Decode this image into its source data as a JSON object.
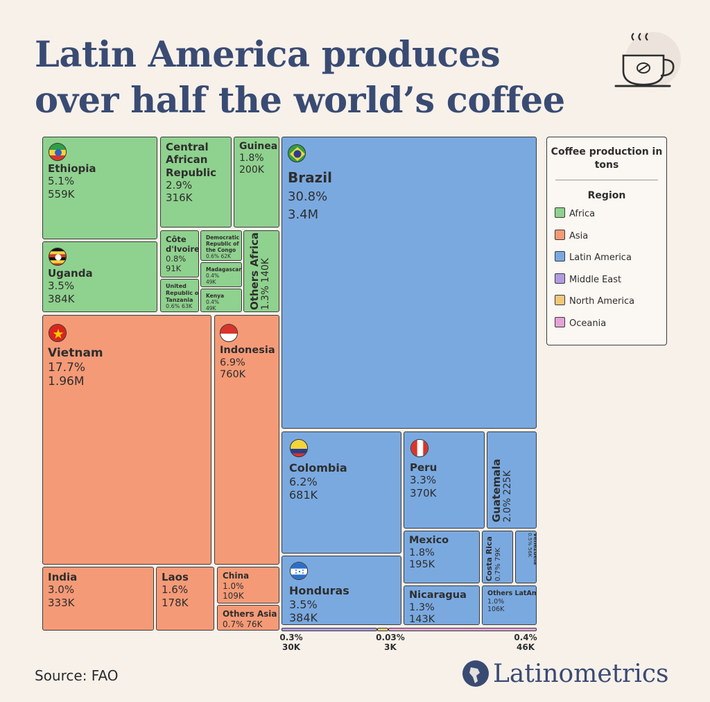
{
  "title_lines": [
    "Latin America produces",
    "over half the world’s coffee"
  ],
  "legend": {
    "title": "Coffee production in tons",
    "subtitle": "Region",
    "items": [
      {
        "label": "Africa",
        "color": "#8fd18e"
      },
      {
        "label": "Asia",
        "color": "#f59a77"
      },
      {
        "label": "Latin America",
        "color": "#7aa9e0"
      },
      {
        "label": "Middle East",
        "color": "#b19be0"
      },
      {
        "label": "North America",
        "color": "#f1c77a"
      },
      {
        "label": "Oceania",
        "color": "#e6a2d5"
      }
    ]
  },
  "source": "Source: FAO",
  "brand": "Latinometrics",
  "chart_data": {
    "type": "treemap",
    "title": "Latin America produces over half the world’s coffee",
    "unit": "tons",
    "items": [
      {
        "name": "Brazil",
        "region": "Latin America",
        "share": "30.8%",
        "value": "3.4M"
      },
      {
        "name": "Vietnam",
        "region": "Asia",
        "share": "17.7%",
        "value": "1.96M"
      },
      {
        "name": "Indonesia",
        "region": "Asia",
        "share": "6.9%",
        "value": "760K"
      },
      {
        "name": "Colombia",
        "region": "Latin America",
        "share": "6.2%",
        "value": "681K"
      },
      {
        "name": "Ethiopia",
        "region": "Africa",
        "share": "5.1%",
        "value": "559K"
      },
      {
        "name": "Uganda",
        "region": "Africa",
        "share": "3.5%",
        "value": "384K"
      },
      {
        "name": "Honduras",
        "region": "Latin America",
        "share": "3.5%",
        "value": "384K"
      },
      {
        "name": "Peru",
        "region": "Latin America",
        "share": "3.3%",
        "value": "370K"
      },
      {
        "name": "India",
        "region": "Asia",
        "share": "3.0%",
        "value": "333K"
      },
      {
        "name": "Central African Republic",
        "region": "Africa",
        "share": "2.9%",
        "value": "316K"
      },
      {
        "name": "Guatemala",
        "region": "Latin America",
        "share": "2.0%",
        "value": "225K"
      },
      {
        "name": "Guinea",
        "region": "Africa",
        "share": "1.8%",
        "value": "200K"
      },
      {
        "name": "Mexico",
        "region": "Latin America",
        "share": "1.8%",
        "value": "195K"
      },
      {
        "name": "Laos",
        "region": "Asia",
        "share": "1.6%",
        "value": "178K"
      },
      {
        "name": "Nicaragua",
        "region": "Latin America",
        "share": "1.3%",
        "value": "143K"
      },
      {
        "name": "Others Africa",
        "region": "Africa",
        "share": "1.3%",
        "value": "140K"
      },
      {
        "name": "China",
        "region": "Asia",
        "share": "1.0%",
        "value": "109K"
      },
      {
        "name": "Others LatAm",
        "region": "Latin America",
        "share": "1.0%",
        "value": "106K"
      },
      {
        "name": "Côte d'Ivoire",
        "region": "Africa",
        "share": "0.8%",
        "value": "91K"
      },
      {
        "name": "Costa Rica",
        "region": "Latin America",
        "share": "0.7%",
        "value": "79K"
      },
      {
        "name": "Others Asia",
        "region": "Asia",
        "share": "0.7%",
        "value": "76K"
      },
      {
        "name": "United Republic of Tanzania",
        "region": "Africa",
        "share": "0.6%",
        "value": "63K"
      },
      {
        "name": "Democratic Republic of the Congo",
        "region": "Africa",
        "share": "0.6%",
        "value": "62K"
      },
      {
        "name": "Venezuela",
        "region": "Latin America",
        "share": "0.5%",
        "value": "56K"
      },
      {
        "name": "Madagascar",
        "region": "Africa",
        "share": "0.4%",
        "value": "49K"
      },
      {
        "name": "Kenya",
        "region": "Africa",
        "share": "0.4%",
        "value": "49K"
      },
      {
        "name": "Middle East",
        "region": "Middle East",
        "share": "0.3%",
        "value": "30K",
        "label_position": "below"
      },
      {
        "name": "North America",
        "region": "North America",
        "share": "0.03%",
        "value": "3K",
        "label_position": "below"
      },
      {
        "name": "Oceania",
        "region": "Oceania",
        "share": "0.4%",
        "value": "46K",
        "label_position": "below"
      }
    ]
  }
}
